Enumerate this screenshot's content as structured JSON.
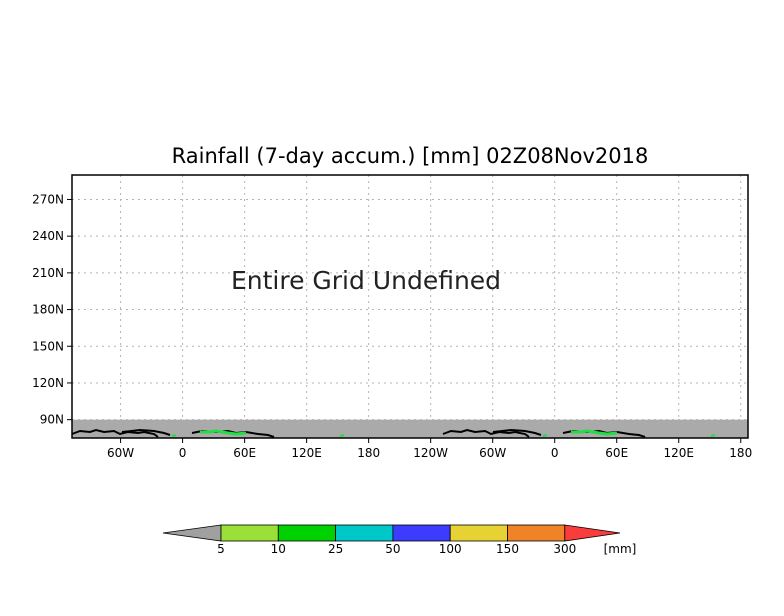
{
  "title": "Rainfall (7-day accum.) [mm] 02Z08Nov2018",
  "message": "Entire Grid Undefined",
  "lat_ticks": [
    {
      "value": 270,
      "label": "270N"
    },
    {
      "value": 240,
      "label": "240N"
    },
    {
      "value": 210,
      "label": "210N"
    },
    {
      "value": 180,
      "label": "180N"
    },
    {
      "value": 150,
      "label": "150N"
    },
    {
      "value": 120,
      "label": "120N"
    },
    {
      "value": 90,
      "label": "90N"
    }
  ],
  "lon_ticks": [
    {
      "value": -60,
      "label": "60W"
    },
    {
      "value": 0,
      "label": "0"
    },
    {
      "value": 60,
      "label": "60E"
    },
    {
      "value": 120,
      "label": "120E"
    },
    {
      "value": 180,
      "label": "180"
    },
    {
      "value": 240,
      "label": "120W"
    },
    {
      "value": 300,
      "label": "60W"
    },
    {
      "value": 360,
      "label": "0"
    },
    {
      "value": 420,
      "label": "60E"
    },
    {
      "value": 480,
      "label": "120E"
    },
    {
      "value": 540,
      "label": "180"
    }
  ],
  "extent": {
    "lon_min": -107,
    "lon_max": 547,
    "lat_min": 75,
    "lat_max": 290
  },
  "undefined_band": {
    "lat_min": 75,
    "lat_max": 90,
    "color": "#aaaaaa"
  },
  "colorbar": {
    "unit": "[mm]",
    "under_color": "#a0a0a0",
    "bins": [
      {
        "color": "#9be038"
      },
      {
        "color": "#00d200"
      },
      {
        "color": "#00c8c8"
      },
      {
        "color": "#3c3cff"
      },
      {
        "color": "#e6d232"
      },
      {
        "color": "#f08228"
      }
    ],
    "over_color": "#fa3c3c",
    "labels": [
      "5",
      "10",
      "25",
      "50",
      "100",
      "150",
      "300"
    ]
  }
}
